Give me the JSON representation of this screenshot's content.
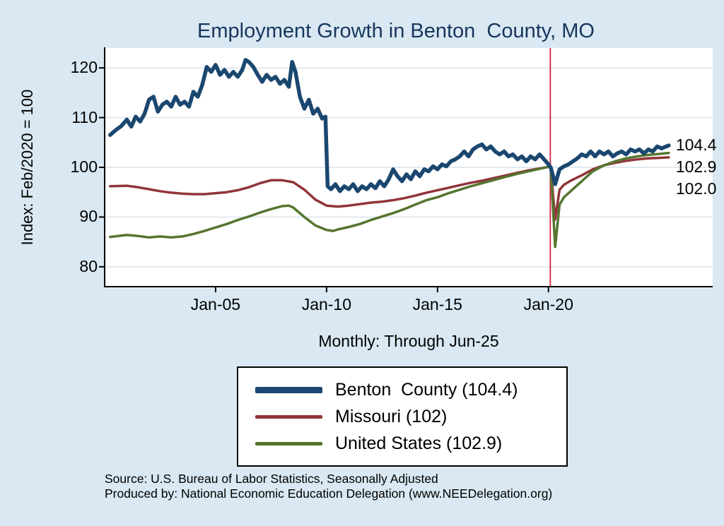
{
  "page": {
    "background": "#d9e8f2",
    "title_color": "#17365d"
  },
  "footer": {
    "source": "Source: U.S. Bureau of Labor Statistics, Seasonally Adjusted",
    "produced_by": "Produced by: National Economic Education Delegation (www.NEEDelegation.org)"
  },
  "chart_data": {
    "type": "line",
    "title": "Employment Growth in Benton  County, MO",
    "subtitle": "Monthly: Through Jun-25",
    "ylabel": "Index: Feb/2020 = 100",
    "xlabel": "",
    "ylim": [
      76,
      124
    ],
    "yticks": [
      80,
      90,
      100,
      110,
      120
    ],
    "xticks": [
      {
        "x": 2005,
        "label": "Jan-05"
      },
      {
        "x": 2010,
        "label": "Jan-10"
      },
      {
        "x": 2015,
        "label": "Jan-15"
      },
      {
        "x": 2020,
        "label": "Jan-20"
      }
    ],
    "x_range_years": [
      2000,
      2027.4
    ],
    "grid": true,
    "legend_position": "bottom",
    "reference_line": {
      "x": 2020.083,
      "color": "#d02540"
    },
    "end_labels": [
      {
        "value": 104.4,
        "label": "104.4"
      },
      {
        "value": 102.9,
        "label": "102.9"
      },
      {
        "value": 102.0,
        "label": "102.0"
      }
    ],
    "series": [
      {
        "name": "Benton County",
        "legend_label": "Benton  County (104.4)",
        "color": "#1a476f",
        "width": 5.5,
        "points": [
          [
            2000.25,
            106.5
          ],
          [
            2000.5,
            107.5
          ],
          [
            2000.75,
            108.3
          ],
          [
            2001,
            109.6
          ],
          [
            2001.2,
            108.2
          ],
          [
            2001.4,
            110.2
          ],
          [
            2001.6,
            109.2
          ],
          [
            2001.8,
            110.8
          ],
          [
            2002,
            113.6
          ],
          [
            2002.2,
            114.2
          ],
          [
            2002.4,
            111.2
          ],
          [
            2002.6,
            112.6
          ],
          [
            2002.8,
            113.2
          ],
          [
            2003,
            112.2
          ],
          [
            2003.2,
            114.2
          ],
          [
            2003.4,
            112.6
          ],
          [
            2003.6,
            113.2
          ],
          [
            2003.8,
            112.2
          ],
          [
            2004,
            115.2
          ],
          [
            2004.2,
            114.2
          ],
          [
            2004.4,
            116.6
          ],
          [
            2004.6,
            120.2
          ],
          [
            2004.8,
            119.2
          ],
          [
            2005,
            120.6
          ],
          [
            2005.2,
            118.6
          ],
          [
            2005.4,
            119.6
          ],
          [
            2005.6,
            118.2
          ],
          [
            2005.8,
            119.2
          ],
          [
            2006,
            118.2
          ],
          [
            2006.2,
            119.6
          ],
          [
            2006.35,
            121.6
          ],
          [
            2006.5,
            121.2
          ],
          [
            2006.7,
            120.2
          ],
          [
            2006.9,
            118.6
          ],
          [
            2007.1,
            117.2
          ],
          [
            2007.3,
            118.6
          ],
          [
            2007.5,
            117.6
          ],
          [
            2007.7,
            118.2
          ],
          [
            2007.9,
            116.8
          ],
          [
            2008.1,
            117.6
          ],
          [
            2008.3,
            116.2
          ],
          [
            2008.45,
            121.2
          ],
          [
            2008.6,
            119.2
          ],
          [
            2008.8,
            114.2
          ],
          [
            2009,
            111.8
          ],
          [
            2009.2,
            113.6
          ],
          [
            2009.4,
            110.8
          ],
          [
            2009.6,
            111.8
          ],
          [
            2009.8,
            109.8
          ],
          [
            2009.95,
            110.2
          ],
          [
            2010.05,
            96.2
          ],
          [
            2010.2,
            95.6
          ],
          [
            2010.4,
            96.6
          ],
          [
            2010.6,
            95.2
          ],
          [
            2010.8,
            96.2
          ],
          [
            2011,
            95.6
          ],
          [
            2011.2,
            96.6
          ],
          [
            2011.4,
            95.2
          ],
          [
            2011.6,
            96.2
          ],
          [
            2011.8,
            95.6
          ],
          [
            2012,
            96.6
          ],
          [
            2012.2,
            95.8
          ],
          [
            2012.4,
            97.2
          ],
          [
            2012.6,
            96.2
          ],
          [
            2012.8,
            97.6
          ],
          [
            2013,
            99.6
          ],
          [
            2013.2,
            98.2
          ],
          [
            2013.4,
            97.2
          ],
          [
            2013.6,
            98.6
          ],
          [
            2013.8,
            97.6
          ],
          [
            2014,
            99.2
          ],
          [
            2014.2,
            98.2
          ],
          [
            2014.4,
            99.6
          ],
          [
            2014.6,
            99.2
          ],
          [
            2014.8,
            100.2
          ],
          [
            2015,
            99.6
          ],
          [
            2015.2,
            100.6
          ],
          [
            2015.4,
            100.2
          ],
          [
            2015.6,
            101.2
          ],
          [
            2015.8,
            101.6
          ],
          [
            2016,
            102.2
          ],
          [
            2016.2,
            103.2
          ],
          [
            2016.4,
            102.2
          ],
          [
            2016.6,
            103.6
          ],
          [
            2016.8,
            104.2
          ],
          [
            2017,
            104.6
          ],
          [
            2017.2,
            103.6
          ],
          [
            2017.4,
            104.2
          ],
          [
            2017.6,
            103.2
          ],
          [
            2017.8,
            102.6
          ],
          [
            2018,
            103.2
          ],
          [
            2018.2,
            102.2
          ],
          [
            2018.4,
            102.6
          ],
          [
            2018.6,
            101.6
          ],
          [
            2018.8,
            102.2
          ],
          [
            2019,
            101.2
          ],
          [
            2019.2,
            102.2
          ],
          [
            2019.4,
            101.6
          ],
          [
            2019.6,
            102.6
          ],
          [
            2019.8,
            101.6
          ],
          [
            2020,
            100.6
          ],
          [
            2020.1,
            100
          ],
          [
            2020.3,
            96.6
          ],
          [
            2020.5,
            99.6
          ],
          [
            2020.7,
            100.2
          ],
          [
            2020.9,
            100.6
          ],
          [
            2021.1,
            101.2
          ],
          [
            2021.3,
            101.8
          ],
          [
            2021.5,
            102.6
          ],
          [
            2021.7,
            102.2
          ],
          [
            2021.9,
            103.2
          ],
          [
            2022.1,
            102.2
          ],
          [
            2022.3,
            103.2
          ],
          [
            2022.5,
            102.6
          ],
          [
            2022.7,
            103.2
          ],
          [
            2022.9,
            102.2
          ],
          [
            2023.1,
            102.8
          ],
          [
            2023.3,
            103.2
          ],
          [
            2023.5,
            102.6
          ],
          [
            2023.7,
            103.6
          ],
          [
            2023.9,
            103.2
          ],
          [
            2024.1,
            103.6
          ],
          [
            2024.3,
            102.8
          ],
          [
            2024.5,
            103.6
          ],
          [
            2024.7,
            103.2
          ],
          [
            2024.9,
            104.2
          ],
          [
            2025.1,
            103.8
          ],
          [
            2025.25,
            104.1
          ],
          [
            2025.42,
            104.4
          ]
        ]
      },
      {
        "name": "Missouri",
        "legend_label": "Missouri (102)",
        "color": "#90353b",
        "width": 3.5,
        "points": [
          [
            2000.25,
            96.2
          ],
          [
            2001,
            96.3
          ],
          [
            2001.5,
            96.0
          ],
          [
            2002,
            95.6
          ],
          [
            2002.5,
            95.2
          ],
          [
            2003,
            94.9
          ],
          [
            2003.5,
            94.7
          ],
          [
            2004,
            94.6
          ],
          [
            2004.5,
            94.6
          ],
          [
            2005,
            94.8
          ],
          [
            2005.5,
            95.0
          ],
          [
            2006,
            95.4
          ],
          [
            2006.5,
            96.0
          ],
          [
            2007,
            96.8
          ],
          [
            2007.5,
            97.4
          ],
          [
            2008,
            97.4
          ],
          [
            2008.5,
            97.0
          ],
          [
            2009,
            95.5
          ],
          [
            2009.5,
            93.5
          ],
          [
            2010,
            92.3
          ],
          [
            2010.5,
            92.1
          ],
          [
            2011,
            92.3
          ],
          [
            2011.5,
            92.6
          ],
          [
            2012,
            92.9
          ],
          [
            2012.5,
            93.1
          ],
          [
            2013,
            93.4
          ],
          [
            2013.5,
            93.8
          ],
          [
            2014,
            94.3
          ],
          [
            2014.5,
            94.9
          ],
          [
            2015,
            95.4
          ],
          [
            2015.5,
            95.9
          ],
          [
            2016,
            96.4
          ],
          [
            2016.5,
            96.9
          ],
          [
            2017,
            97.3
          ],
          [
            2017.5,
            97.8
          ],
          [
            2018,
            98.3
          ],
          [
            2018.5,
            98.8
          ],
          [
            2019,
            99.3
          ],
          [
            2019.5,
            99.7
          ],
          [
            2020,
            100.1
          ],
          [
            2020.1,
            100
          ],
          [
            2020.3,
            89.5
          ],
          [
            2020.5,
            95.5
          ],
          [
            2020.7,
            96.5
          ],
          [
            2021,
            97.3
          ],
          [
            2021.5,
            98.4
          ],
          [
            2022,
            99.6
          ],
          [
            2022.5,
            100.4
          ],
          [
            2023,
            100.9
          ],
          [
            2023.5,
            101.3
          ],
          [
            2024,
            101.6
          ],
          [
            2024.5,
            101.8
          ],
          [
            2025,
            101.9
          ],
          [
            2025.42,
            102.0
          ]
        ]
      },
      {
        "name": "United States",
        "legend_label": "United States (102.9)",
        "color": "#55752f",
        "width": 3.5,
        "points": [
          [
            2000.25,
            86.0
          ],
          [
            2001,
            86.4
          ],
          [
            2001.5,
            86.2
          ],
          [
            2002,
            85.9
          ],
          [
            2002.5,
            86.1
          ],
          [
            2003,
            85.9
          ],
          [
            2003.5,
            86.1
          ],
          [
            2004,
            86.6
          ],
          [
            2004.5,
            87.2
          ],
          [
            2005,
            87.9
          ],
          [
            2005.5,
            88.6
          ],
          [
            2006,
            89.4
          ],
          [
            2006.5,
            90.1
          ],
          [
            2007,
            90.9
          ],
          [
            2007.5,
            91.6
          ],
          [
            2008,
            92.2
          ],
          [
            2008.3,
            92.3
          ],
          [
            2008.5,
            91.9
          ],
          [
            2009,
            90.0
          ],
          [
            2009.5,
            88.3
          ],
          [
            2010,
            87.4
          ],
          [
            2010.3,
            87.2
          ],
          [
            2010.5,
            87.5
          ],
          [
            2011,
            88.0
          ],
          [
            2011.5,
            88.6
          ],
          [
            2012,
            89.4
          ],
          [
            2012.5,
            90.1
          ],
          [
            2013,
            90.8
          ],
          [
            2013.5,
            91.6
          ],
          [
            2014,
            92.5
          ],
          [
            2014.5,
            93.4
          ],
          [
            2015,
            94.0
          ],
          [
            2015.5,
            94.8
          ],
          [
            2016,
            95.5
          ],
          [
            2016.5,
            96.2
          ],
          [
            2017,
            96.8
          ],
          [
            2017.5,
            97.4
          ],
          [
            2018,
            98.0
          ],
          [
            2018.5,
            98.6
          ],
          [
            2019,
            99.1
          ],
          [
            2019.5,
            99.6
          ],
          [
            2020,
            100.1
          ],
          [
            2020.1,
            100
          ],
          [
            2020.3,
            84.0
          ],
          [
            2020.5,
            92.5
          ],
          [
            2020.7,
            94.0
          ],
          [
            2021,
            95.2
          ],
          [
            2021.5,
            97.2
          ],
          [
            2022,
            99.2
          ],
          [
            2022.5,
            100.4
          ],
          [
            2023,
            101.2
          ],
          [
            2023.5,
            101.8
          ],
          [
            2024,
            102.2
          ],
          [
            2024.5,
            102.5
          ],
          [
            2025,
            102.7
          ],
          [
            2025.42,
            102.9
          ]
        ]
      }
    ]
  }
}
